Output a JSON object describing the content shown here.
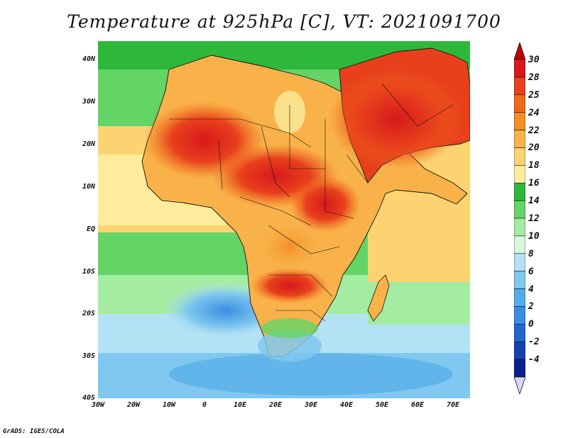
{
  "title": "Temperature at 925hPa [C], VT: 2021091700",
  "footer": "GrADS: IGES/COLA",
  "map": {
    "lat_labels": [
      "40N",
      "30N",
      "20N",
      "10N",
      "EQ",
      "10S",
      "20S",
      "30S",
      "40S"
    ],
    "lon_labels": [
      "30W",
      "20W",
      "10W",
      "0",
      "10E",
      "20E",
      "30E",
      "40E",
      "50E",
      "60E",
      "70E"
    ],
    "lat_range": [
      -40,
      45
    ],
    "lon_range": [
      -30,
      75
    ]
  },
  "colorbar": {
    "labels": [
      "30",
      "28",
      "25",
      "24",
      "22",
      "20",
      "18",
      "16",
      "14",
      "12",
      "10",
      "8",
      "6",
      "4",
      "2",
      "0",
      "-2",
      "-4"
    ],
    "colors": [
      "#d7191c",
      "#e8401d",
      "#f06a18",
      "#f58e25",
      "#f9b24a",
      "#fcd370",
      "#fdec9c",
      "#2db83b",
      "#63d466",
      "#a4eca2",
      "#d7f8dc",
      "#b4e2f5",
      "#80c8ef",
      "#55acea",
      "#3a8ee2",
      "#2268d0",
      "#1242b0",
      "#0a208c"
    ]
  },
  "colors": {
    "ocean_cool": "#a4eca2",
    "land_hot": "#e8401d",
    "coast": "#111111"
  }
}
